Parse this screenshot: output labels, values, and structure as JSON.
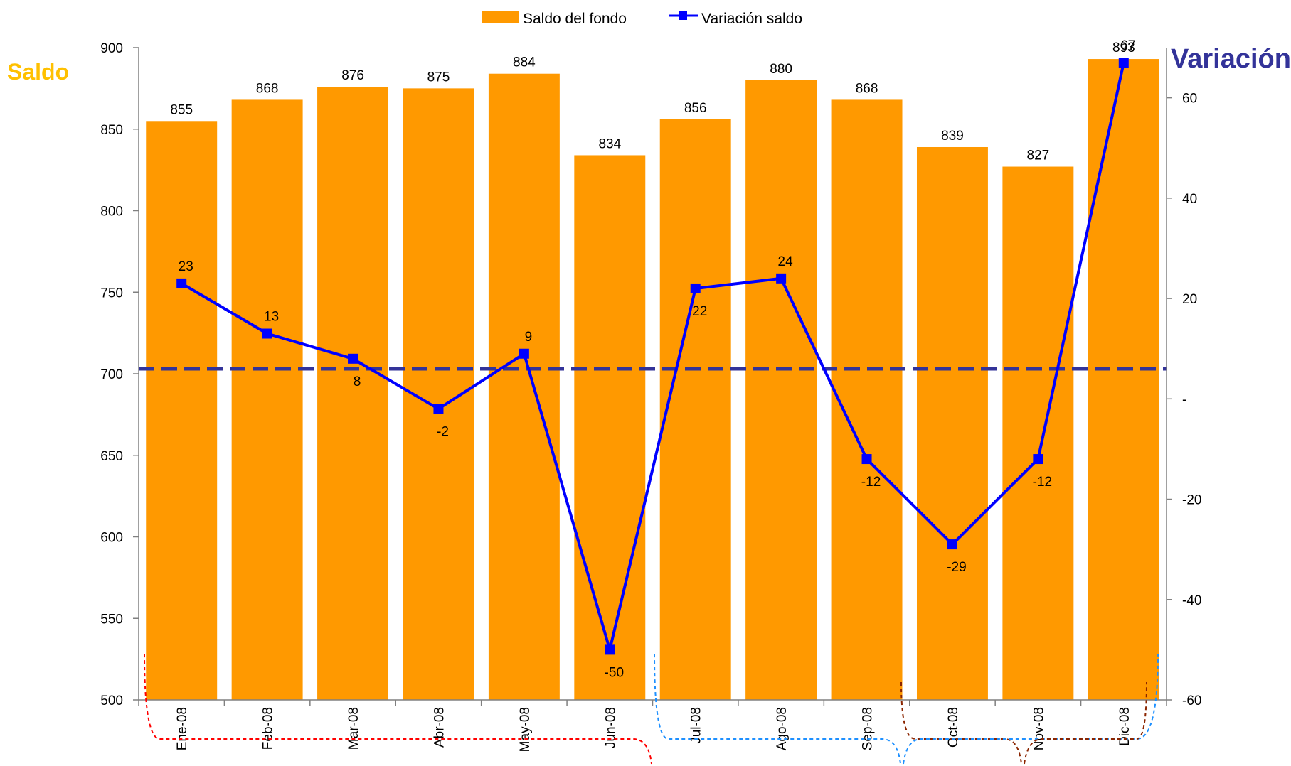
{
  "chart_data": {
    "type": "bar",
    "categories": [
      "Ene-08",
      "Feb-08",
      "Mar-08",
      "Abr-08",
      "May-08",
      "Jun-08",
      "Jul-08",
      "Ago-08",
      "Sep-08",
      "Oct-08",
      "Nov-08",
      "Dic-08"
    ],
    "series": [
      {
        "name": "Saldo del fondo",
        "type": "bar",
        "axis": "left",
        "color": "#FF9900",
        "values": [
          855,
          868,
          876,
          875,
          884,
          834,
          856,
          880,
          868,
          839,
          827,
          893
        ]
      },
      {
        "name": "Variación saldo",
        "type": "line",
        "axis": "right",
        "color": "#0000FF",
        "values": [
          23,
          13,
          8,
          -2,
          9,
          -50,
          22,
          24,
          -12,
          -29,
          -12,
          67
        ]
      }
    ],
    "reference_line": {
      "axis": "right",
      "value": 6,
      "color": "#333399",
      "style": "dashed"
    },
    "ylabel": "Saldo",
    "ylabel_color": "#FFC000",
    "y2label": "Variación",
    "y2label_color": "#333399",
    "ylim": [
      500,
      900
    ],
    "yticks": [
      "500",
      "550",
      "600",
      "650",
      "700",
      "750",
      "800",
      "850",
      "900"
    ],
    "y2lim": [
      -60,
      70
    ],
    "y2ticks": [
      {
        "value": -60,
        "label": "-60"
      },
      {
        "value": -40,
        "label": "-40"
      },
      {
        "value": -20,
        "label": "-20"
      },
      {
        "value": 0,
        "label": "-"
      },
      {
        "value": 20,
        "label": "20"
      },
      {
        "value": 40,
        "label": "40"
      },
      {
        "value": 60,
        "label": "60"
      }
    ],
    "legend_position": "top-center",
    "grid": false
  }
}
